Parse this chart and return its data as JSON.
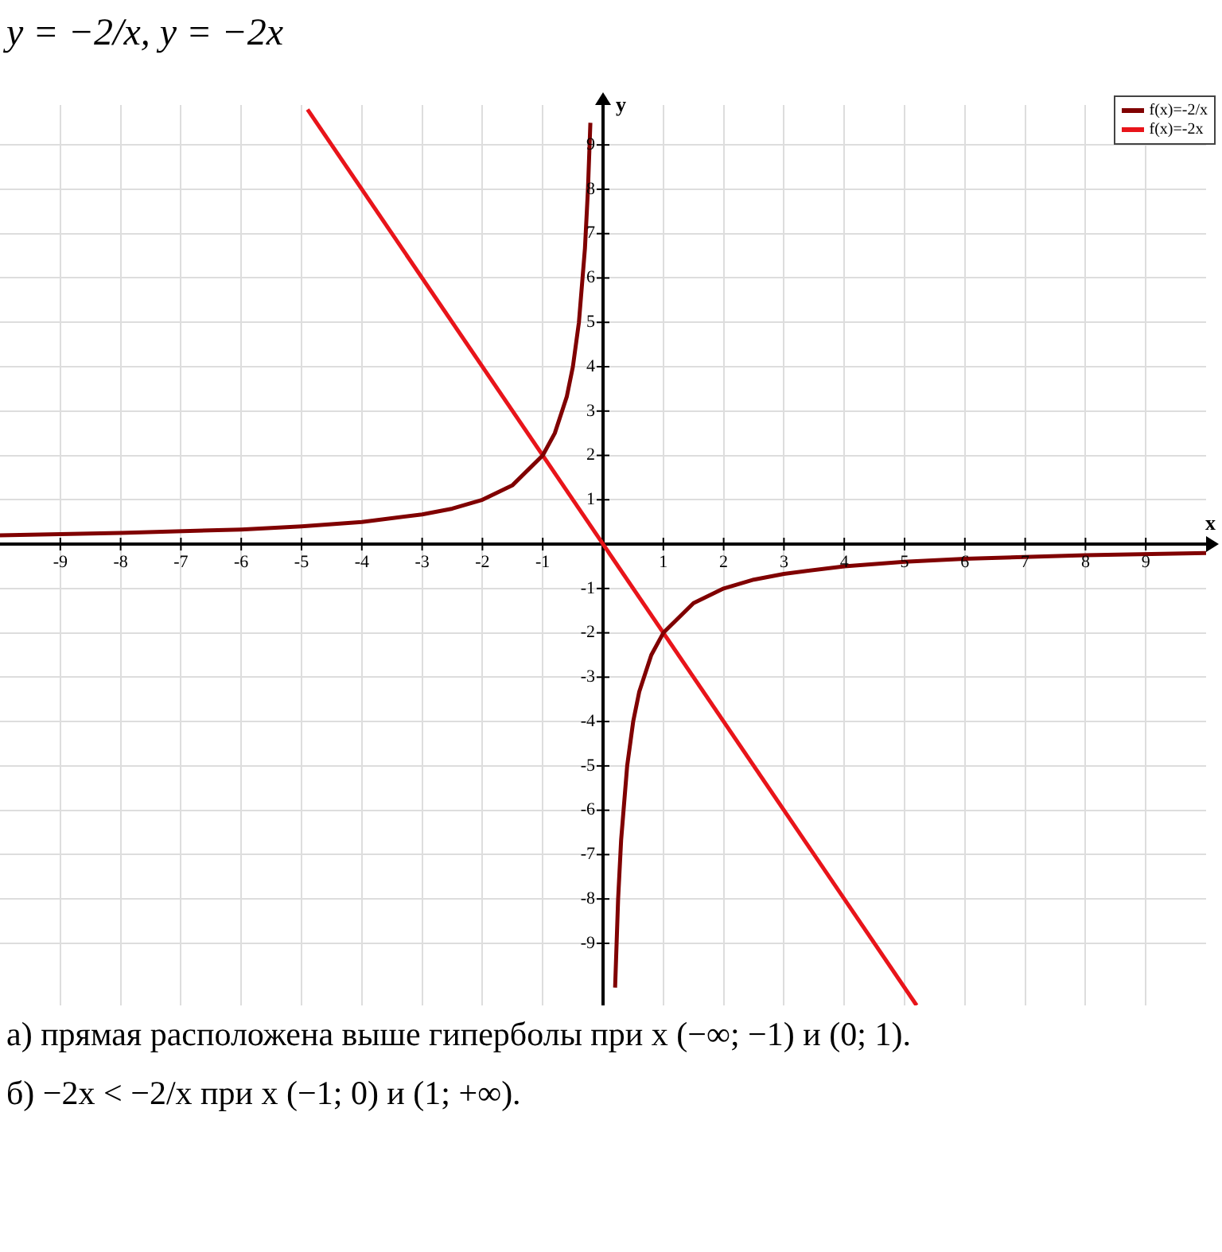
{
  "chart_data": {
    "type": "line",
    "title": "y = −2/x,    y = −2x",
    "xlabel": "x",
    "ylabel": "y",
    "annotations": [
      "а) прямая расположена выше гиперболы при x (−∞; −1) и (0; 1).",
      "б) −2x < −2/x при x (−1; 0) и (1; +∞)."
    ],
    "xlim": [
      -10,
      10
    ],
    "ylim": [
      -10.4,
      9.9
    ],
    "xticks": [
      -9,
      -8,
      -7,
      -6,
      -5,
      -4,
      -3,
      -2,
      -1,
      1,
      2,
      3,
      4,
      5,
      6,
      7,
      8,
      9
    ],
    "yticks": [
      -9,
      -8,
      -7,
      -6,
      -5,
      -4,
      -3,
      -2,
      -1,
      1,
      2,
      3,
      4,
      5,
      6,
      7,
      8,
      9
    ],
    "grid": true,
    "legend": "top right",
    "marker": "none",
    "line_style": "solid",
    "series": [
      {
        "name": "f(x)=-2/x",
        "color": "#800000",
        "x": [
          -10,
          -8,
          -6,
          -5,
          -4,
          -3,
          -2.5,
          -2,
          -1.5,
          -1,
          -0.8,
          -0.6,
          -0.5,
          -0.4,
          -0.3,
          -0.25,
          -0.21,
          0,
          0.2,
          0.25,
          0.3,
          0.4,
          0.5,
          0.6,
          0.8,
          1,
          1.5,
          2,
          2.5,
          3,
          4,
          5,
          6,
          8,
          10
        ],
        "values": [
          0.2,
          0.25,
          0.33,
          0.4,
          0.5,
          0.67,
          0.8,
          1,
          1.33,
          2,
          2.5,
          3.33,
          4,
          5,
          6.67,
          8,
          9.5,
          null,
          -10,
          -8,
          -6.67,
          -5,
          -4,
          -3.33,
          -2.5,
          -2,
          -1.33,
          -1,
          -0.8,
          -0.67,
          -0.5,
          -0.4,
          -0.33,
          -0.25,
          -0.2
        ]
      },
      {
        "name": "f(x)=-2x",
        "color": "#e8141a",
        "x": [
          -4.9,
          5.2
        ],
        "values": [
          9.8,
          -10.4
        ]
      }
    ]
  }
}
